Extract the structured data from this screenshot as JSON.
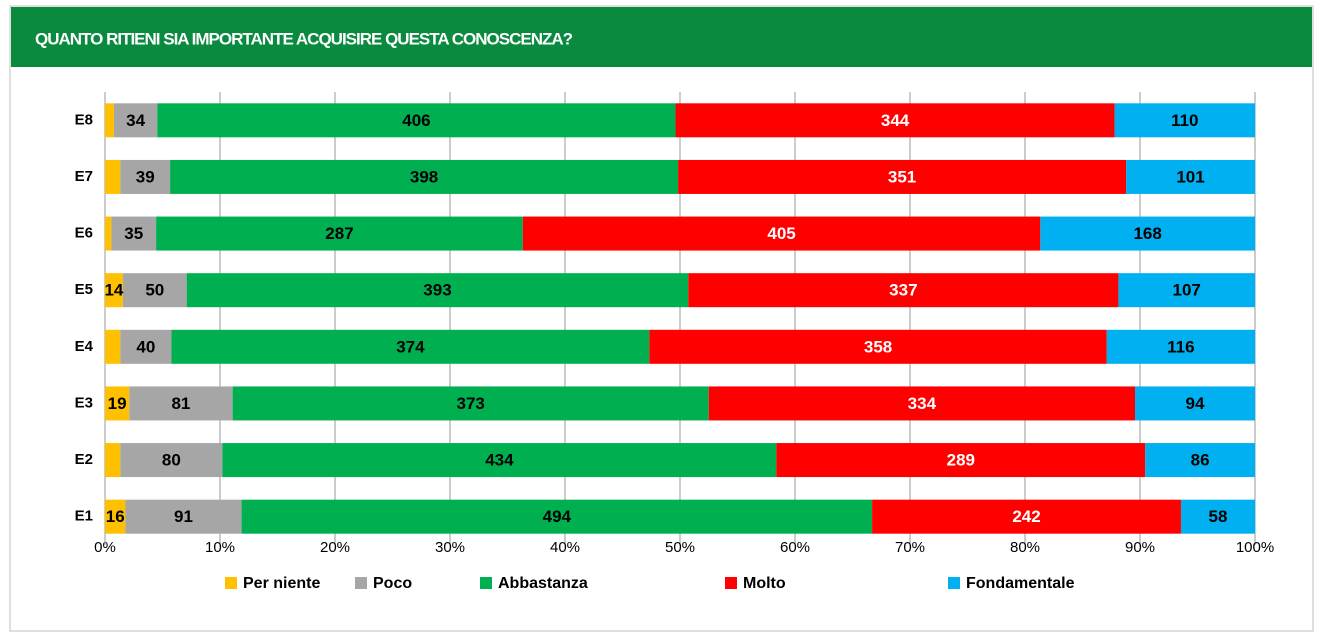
{
  "chart_data": {
    "type": "bar",
    "orientation": "horizontal",
    "stacking": "percent",
    "title": "QUANTO RITIENI SIA IMPORTANTE ACQUISIRE QUESTA CONOSCENZA?",
    "categories": [
      "E1",
      "E2",
      "E3",
      "E4",
      "E5",
      "E6",
      "E7",
      "E8"
    ],
    "series": [
      {
        "name": "Per niente",
        "color": "#ffc000",
        "label_color": "#000000",
        "values": [
          16,
          12,
          19,
          12,
          14,
          5,
          12,
          7
        ],
        "value_labels": [
          "16",
          null,
          "19",
          null,
          "14",
          null,
          null,
          null
        ]
      },
      {
        "name": "Poco",
        "color": "#a6a6a6",
        "label_color": "#000000",
        "values": [
          91,
          80,
          81,
          40,
          50,
          35,
          39,
          34
        ]
      },
      {
        "name": "Abbastanza",
        "color": "#00b050",
        "label_color": "#000000",
        "values": [
          494,
          434,
          373,
          374,
          393,
          287,
          398,
          406
        ]
      },
      {
        "name": "Molto",
        "color": "#ff0000",
        "label_color": "#ffffff",
        "values": [
          242,
          289,
          334,
          358,
          337,
          405,
          351,
          344
        ]
      },
      {
        "name": "Fondamentale",
        "color": "#00b0f0",
        "label_color": "#000000",
        "values": [
          58,
          86,
          94,
          116,
          107,
          168,
          101,
          110
        ]
      }
    ],
    "xlim": [
      0,
      100
    ],
    "xticks": [
      {
        "value": 0,
        "label": "0%"
      },
      {
        "value": 10,
        "label": "10%"
      },
      {
        "value": 20,
        "label": "20%"
      },
      {
        "value": 30,
        "label": "30%"
      },
      {
        "value": 40,
        "label": "40%"
      },
      {
        "value": 50,
        "label": "50%"
      },
      {
        "value": 60,
        "label": "60%"
      },
      {
        "value": 70,
        "label": "70%"
      },
      {
        "value": 80,
        "label": "80%"
      },
      {
        "value": 90,
        "label": "90%"
      },
      {
        "value": 100,
        "label": "100%"
      }
    ],
    "grid": true,
    "legend": "bottom"
  }
}
